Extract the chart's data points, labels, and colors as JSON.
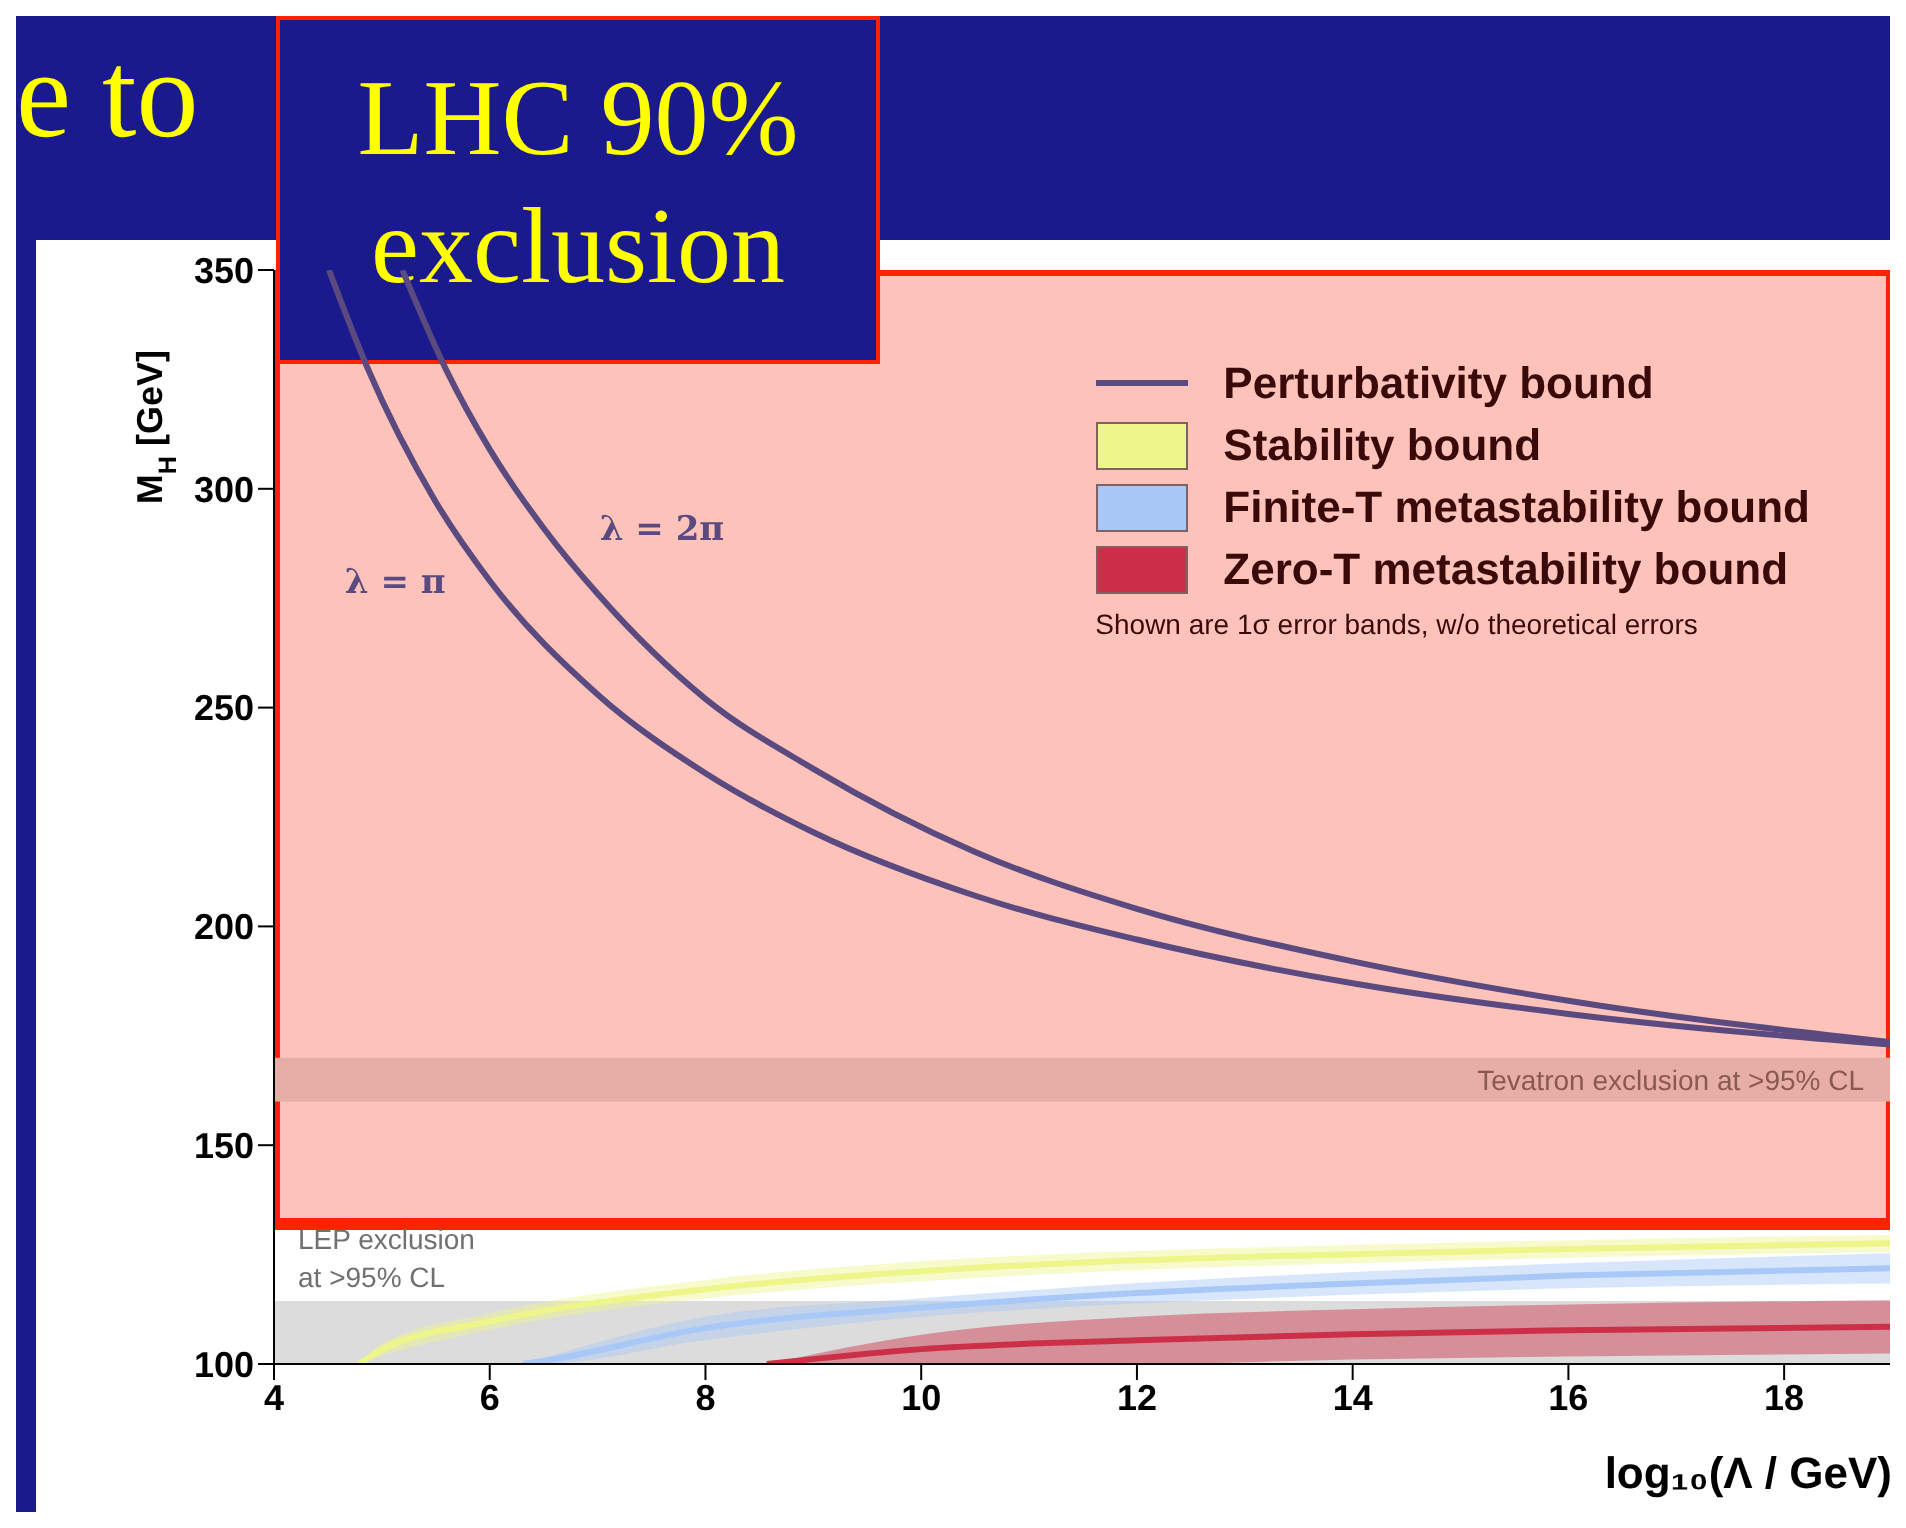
{
  "chart_data": {
    "type": "line",
    "title": "e to",
    "xlabel": "log₁₀(Λ / GeV)",
    "ylabel": "M$_{H}$ [GeV]",
    "xlim": [
      4,
      19
    ],
    "xticks": [
      4,
      6,
      8,
      10,
      12,
      14,
      16,
      18
    ],
    "ylim": [
      100,
      350
    ],
    "yticks": [
      100,
      150,
      200,
      250,
      300,
      350
    ],
    "grid": false,
    "legend": "top right",
    "marker": "none",
    "line_style": "solid",
    "series": [
      {
        "name": "Perturbativity bound",
        "color": "#5a4a80",
        "x": [
          4.51,
          4.86,
          5.5,
          6,
          7,
          8,
          9,
          10.5,
          12,
          14,
          16,
          19
        ],
        "values": [
          350,
          328,
          297,
          279,
          253,
          235,
          221.5,
          207,
          197,
          187,
          180,
          173
        ]
      },
      {
        "color": "#5a4a80",
        "x": [
          5.19,
          5.6,
          6,
          6.5,
          7,
          8,
          9,
          10.5,
          12,
          14,
          16,
          19
        ],
        "values": [
          350,
          327,
          309,
          291,
          276,
          252,
          236,
          217,
          204,
          192,
          183,
          173.5
        ]
      },
      {
        "name": "Stability bound",
        "color": "#eef58a",
        "x": [
          4.79,
          5,
          6,
          8,
          10,
          12,
          14,
          16,
          19
        ],
        "values": [
          100,
          103.3,
          109.7,
          117.1,
          121.2,
          123.7,
          125.1,
          126.3,
          127.6
        ],
        "lower": [
          100,
          101.8,
          107.8,
          115,
          118.9,
          121.5,
          123,
          124.3,
          125.6
        ],
        "upper": [
          100,
          104.7,
          111.6,
          119.2,
          123.5,
          125.8,
          127.2,
          128.3,
          129.5
        ]
      },
      {
        "name": "Finite-T metastability bound",
        "color": "#a8c8f8",
        "x": [
          6.31,
          6.45,
          8,
          10,
          12,
          14,
          16,
          19
        ],
        "values": [
          100,
          100.5,
          108.2,
          112.9,
          116.2,
          118.4,
          120.2,
          121.9
        ],
        "lower": [
          100,
          100,
          105.5,
          110.8,
          113.8,
          115.8,
          117.3,
          118.4
        ],
        "upper": [
          100,
          101,
          110.8,
          115,
          118.5,
          121,
          123,
          125.3
        ]
      },
      {
        "name": "Zero-T metastability bound",
        "color": "#cc3048",
        "x": [
          8.57,
          10,
          12,
          14,
          16,
          19
        ],
        "values": [
          100,
          103.4,
          105.4,
          106.8,
          107.7,
          108.5
        ],
        "lower": [
          100,
          100,
          100,
          101,
          101.7,
          102.4
        ],
        "upper": [
          100,
          106.7,
          110.8,
          112.5,
          113.6,
          114.6
        ]
      }
    ],
    "bands": [
      {
        "axis": "y",
        "from": 132,
        "to": 350,
        "label": "LHC 90% exclusion",
        "color": "#fdc3bb"
      },
      {
        "axis": "y",
        "from": 160,
        "to": 170,
        "label": "Tevatron exclusion at >95% CL",
        "color": "#e6aea6"
      },
      {
        "axis": "y",
        "from": 100,
        "to": 114.4,
        "label": "LEP exclusion at >95% CL",
        "color": "#dcdcdc"
      }
    ],
    "annotations": [
      {
        "text": "λ = π",
        "x": 6,
        "y": 279
      },
      {
        "text": "λ = 2π",
        "x": 6.5,
        "y": 291
      },
      "Shown are 1σ error bands, w/o theoretical errors"
    ]
  }
}
